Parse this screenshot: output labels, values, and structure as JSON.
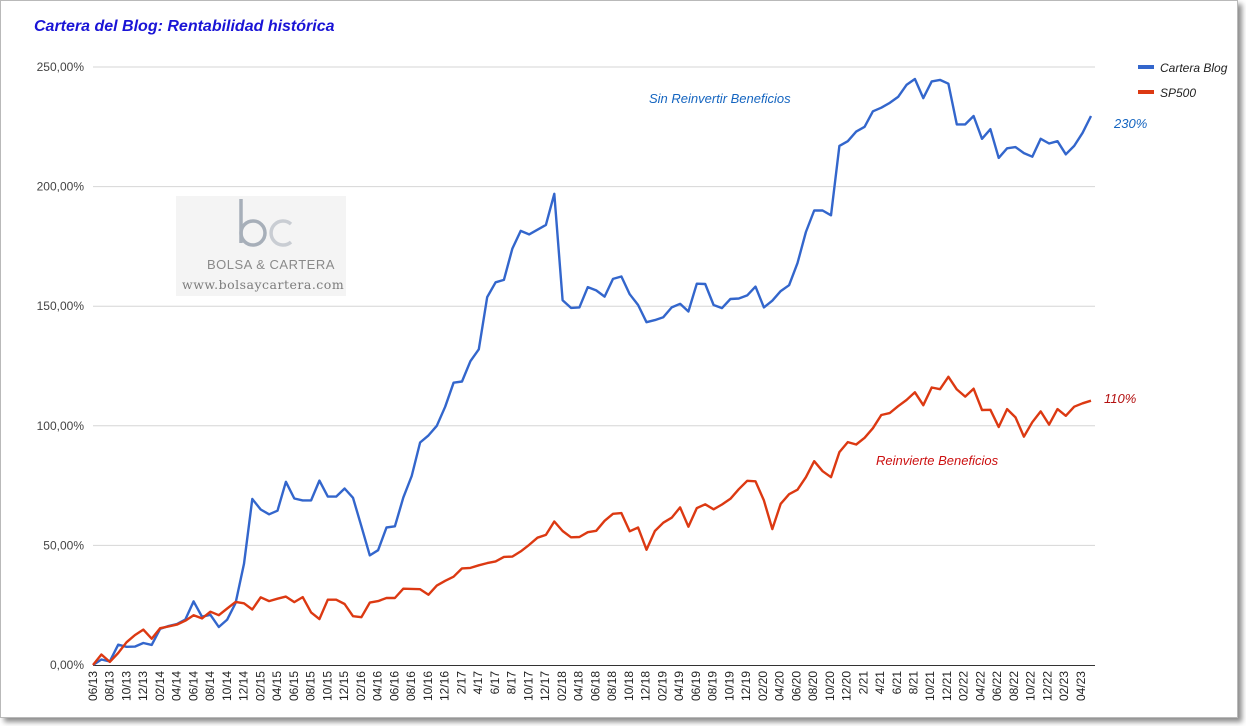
{
  "chart_data": {
    "type": "line",
    "title": "Cartera del Blog: Rentabilidad histórica",
    "xlabel": "",
    "ylabel": "",
    "ylim": [
      0,
      250
    ],
    "y_ticks": [
      "0,00%",
      "50,00%",
      "100,00%",
      "150,00%",
      "200,00%",
      "250,00%"
    ],
    "x_ticks": [
      "06/13",
      "08/13",
      "10/13",
      "12/13",
      "02/14",
      "04/14",
      "06/14",
      "08/14",
      "10/14",
      "12/14",
      "02/15",
      "04/15",
      "06/15",
      "08/15",
      "10/15",
      "12/15",
      "02/16",
      "04/16",
      "06/16",
      "08/16",
      "10/16",
      "12/16",
      "2/17",
      "4/17",
      "6/17",
      "8/17",
      "10/17",
      "12/17",
      "02/18",
      "04/18",
      "06/18",
      "08/18",
      "10/18",
      "12/18",
      "02/19",
      "04/19",
      "06/19",
      "08/19",
      "10/19",
      "12/19",
      "02/20",
      "04/20",
      "06/20",
      "08/20",
      "10/20",
      "12/20",
      "2/21",
      "4/21",
      "6/21",
      "8/21",
      "10/21",
      "12/21",
      "02/22",
      "04/22",
      "06/22",
      "08/22",
      "10/22",
      "12/22",
      "02/23",
      "04/23"
    ],
    "grid": true,
    "legend_position": "top-right",
    "series": [
      {
        "name": "Cartera Blog",
        "color": "#3366cc",
        "end_label": "230%",
        "values": [
          0,
          2.3,
          1.5,
          8.5,
          7.6,
          7.7,
          9.2,
          8.4,
          15.1,
          16.3,
          17.1,
          19,
          26.6,
          20.2,
          21,
          15.9,
          19,
          25.9,
          42.3,
          69.4,
          65,
          63,
          64.5,
          76.6,
          69.6,
          68.8,
          68.8,
          77.1,
          70.4,
          70.4,
          73.8,
          69.9,
          58,
          45.8,
          48,
          57.5,
          58,
          70,
          79,
          93,
          96,
          100,
          108,
          118,
          118.5,
          127,
          132,
          153.8,
          160,
          161,
          174,
          181.5,
          180,
          182,
          184,
          197,
          152.5,
          149.3,
          149.5,
          158,
          156.6,
          154,
          161.4,
          162.4,
          155,
          150.5,
          143.3,
          144.2,
          145.4,
          149.5,
          151,
          147.8,
          159.4,
          159.3,
          150.5,
          149.2,
          153,
          153.2,
          154.5,
          158.2,
          149.5,
          152.3,
          156.3,
          158.8,
          168,
          181,
          190,
          190,
          188,
          217,
          219,
          223,
          225,
          231.5,
          233,
          235,
          237.5,
          242.5,
          245,
          237,
          244,
          244.6,
          243,
          226,
          226,
          229.5,
          220,
          224,
          212,
          216,
          216.5,
          214,
          212.5,
          220,
          218,
          219,
          213.5,
          217,
          222.5,
          229.5
        ]
      },
      {
        "name": "SP500",
        "color": "#dc3912",
        "end_label": "110%",
        "values": [
          0,
          4.4,
          1.3,
          5,
          9.5,
          12.5,
          14.8,
          11,
          15.4,
          16.1,
          16.9,
          18.5,
          20.8,
          19.5,
          22.3,
          20.8,
          23.6,
          26.4,
          25.8,
          23.2,
          28.3,
          26.7,
          27.7,
          28.6,
          26.3,
          28.4,
          22,
          19.2,
          27.3,
          27.3,
          25.5,
          20.4,
          20,
          26.1,
          26.7,
          28,
          28,
          31.9,
          31.8,
          31.7,
          29.4,
          33.2,
          35.2,
          36.9,
          40.4,
          40.6,
          41.7,
          42.6,
          43.3,
          45.2,
          45.3,
          47.5,
          50.2,
          53.2,
          54.4,
          60,
          56,
          53.4,
          53.5,
          55.5,
          56.1,
          60.3,
          63.2,
          63.5,
          55.9,
          57.5,
          48.2,
          56,
          59.5,
          61.6,
          65.9,
          57.8,
          65.6,
          67.2,
          65.1,
          67.1,
          69.5,
          73.5,
          77,
          76.8,
          68.8,
          56.8,
          67.4,
          71.4,
          73.3,
          78.5,
          85.2,
          81,
          78.5,
          89,
          93.2,
          92.2,
          95,
          99,
          104.5,
          105.3,
          108.2,
          110.8,
          114,
          108.6,
          116,
          115.3,
          120.5,
          115.2,
          112.2,
          115.5,
          106.6,
          106.7,
          99.5,
          107,
          103.5,
          95.5,
          101.5,
          106,
          100.5,
          107,
          104.2,
          108,
          109.4,
          110.5
        ]
      }
    ],
    "annotations": [
      {
        "text": "Sin Reinvertir Beneficios",
        "color": "#1565c0"
      },
      {
        "text": "Reinvierte Beneficios",
        "color": "#cc1111"
      }
    ]
  },
  "watermark": {
    "logo_text": "bc",
    "name": "BOLSA & CARTERA",
    "url": "www.bolsaycartera.com"
  }
}
